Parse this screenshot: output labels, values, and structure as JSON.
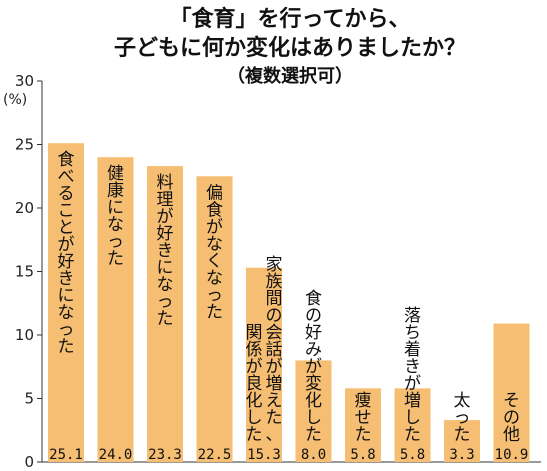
{
  "chart_data": {
    "type": "bar",
    "title_lines": [
      "「食育」を行ってから、",
      "子どもに何か変化はありましたか？"
    ],
    "subtitle": "（複数選択可）",
    "ylabel": "(%)",
    "ylim": [
      0,
      30
    ],
    "yticks": [
      0,
      5,
      10,
      15,
      20,
      25,
      30
    ],
    "grid": false,
    "bar_color": "#f6be72",
    "categories": [
      "食べることが好きになった",
      "健康になった",
      "料理が好きになった",
      "偏食がなくなった",
      "家族間の会話が増えた、関係が良化した",
      "食の好みが変化した",
      "痩せた",
      "落ち着きが増した",
      "太った",
      "その他"
    ],
    "values": [
      25.1,
      24.0,
      23.3,
      22.5,
      15.3,
      8.0,
      5.8,
      5.8,
      3.3,
      10.9
    ],
    "value_labels": [
      "25.1",
      "24.0",
      "23.3",
      "22.5",
      "15.3",
      "8.0",
      "5.8",
      "5.8",
      "3.3",
      "10.9"
    ]
  }
}
